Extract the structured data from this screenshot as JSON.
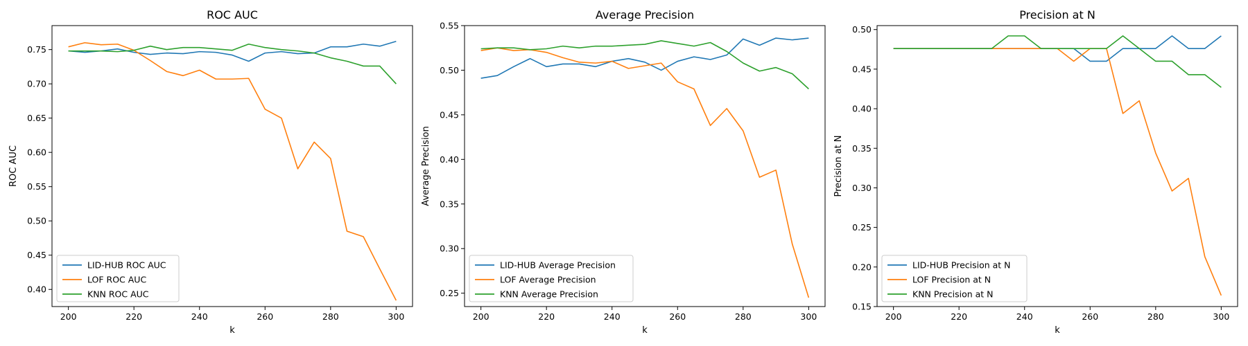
{
  "colors": {
    "lid_hub": "#1f77b4",
    "lof": "#ff7f0e",
    "knn": "#2ca02c"
  },
  "chart_data": [
    {
      "type": "line",
      "title": "ROC AUC",
      "xlabel": "k",
      "ylabel": "ROC AUC",
      "xlim": [
        195,
        305
      ],
      "ylim": [
        0.375,
        0.785
      ],
      "xticks": [
        200,
        220,
        240,
        260,
        280,
        300
      ],
      "yticks": [
        0.4,
        0.45,
        0.5,
        0.55,
        0.6,
        0.65,
        0.7,
        0.75
      ],
      "legend_position": "lower-left",
      "x": [
        200,
        205,
        210,
        215,
        220,
        225,
        230,
        235,
        240,
        245,
        250,
        255,
        260,
        265,
        270,
        275,
        280,
        285,
        290,
        295,
        300
      ],
      "series": [
        {
          "name": "LID-HUB ROC AUC",
          "color": "#1f77b4",
          "values": [
            0.748,
            0.746,
            0.748,
            0.751,
            0.746,
            0.743,
            0.745,
            0.744,
            0.747,
            0.746,
            0.742,
            0.733,
            0.745,
            0.747,
            0.744,
            0.745,
            0.754,
            0.754,
            0.758,
            0.755,
            0.762
          ]
        },
        {
          "name": "LOF ROC AUC",
          "color": "#ff7f0e",
          "values": [
            0.754,
            0.76,
            0.757,
            0.758,
            0.749,
            0.734,
            0.718,
            0.712,
            0.72,
            0.707,
            0.707,
            0.708,
            0.663,
            0.65,
            0.576,
            0.615,
            0.591,
            0.485,
            0.477,
            0.43,
            0.384
          ]
        },
        {
          "name": "KNN ROC AUC",
          "color": "#2ca02c",
          "values": [
            0.748,
            0.748,
            0.748,
            0.747,
            0.749,
            0.755,
            0.75,
            0.753,
            0.753,
            0.751,
            0.749,
            0.758,
            0.753,
            0.75,
            0.748,
            0.745,
            0.738,
            0.733,
            0.726,
            0.726,
            0.7
          ]
        }
      ]
    },
    {
      "type": "line",
      "title": "Average Precision",
      "xlabel": "k",
      "ylabel": "Average Precision",
      "xlim": [
        195,
        305
      ],
      "ylim": [
        0.235,
        0.55
      ],
      "xticks": [
        200,
        220,
        240,
        260,
        280,
        300
      ],
      "yticks": [
        0.25,
        0.3,
        0.35,
        0.4,
        0.45,
        0.5,
        0.55
      ],
      "legend_position": "lower-left",
      "x": [
        200,
        205,
        210,
        215,
        220,
        225,
        230,
        235,
        240,
        245,
        250,
        255,
        260,
        265,
        270,
        275,
        280,
        285,
        290,
        295,
        300
      ],
      "series": [
        {
          "name": "LID-HUB Average Precision",
          "color": "#1f77b4",
          "values": [
            0.491,
            0.494,
            0.504,
            0.513,
            0.504,
            0.507,
            0.507,
            0.504,
            0.51,
            0.513,
            0.509,
            0.5,
            0.51,
            0.515,
            0.512,
            0.517,
            0.535,
            0.528,
            0.536,
            0.534,
            0.536
          ]
        },
        {
          "name": "LOF Average Precision",
          "color": "#ff7f0e",
          "values": [
            0.522,
            0.525,
            0.522,
            0.523,
            0.52,
            0.514,
            0.509,
            0.508,
            0.51,
            0.502,
            0.505,
            0.508,
            0.487,
            0.479,
            0.438,
            0.457,
            0.432,
            0.38,
            0.388,
            0.305,
            0.245
          ]
        },
        {
          "name": "KNN Average Precision",
          "color": "#2ca02c",
          "values": [
            0.524,
            0.525,
            0.525,
            0.523,
            0.524,
            0.527,
            0.525,
            0.527,
            0.527,
            0.528,
            0.529,
            0.533,
            0.53,
            0.527,
            0.531,
            0.521,
            0.508,
            0.499,
            0.503,
            0.496,
            0.479
          ]
        }
      ]
    },
    {
      "type": "line",
      "title": "Precision at N",
      "xlabel": "k",
      "ylabel": "Precision at N",
      "xlim": [
        195,
        305
      ],
      "ylim": [
        0.15,
        0.505
      ],
      "xticks": [
        200,
        220,
        240,
        260,
        280,
        300
      ],
      "yticks": [
        0.15,
        0.2,
        0.25,
        0.3,
        0.35,
        0.4,
        0.45,
        0.5
      ],
      "legend_position": "lower-left",
      "x": [
        200,
        205,
        210,
        215,
        220,
        225,
        230,
        235,
        240,
        245,
        250,
        255,
        260,
        265,
        270,
        275,
        280,
        285,
        290,
        295,
        300
      ],
      "series": [
        {
          "name": "LID-HUB Precision at N",
          "color": "#1f77b4",
          "values": [
            0.476,
            0.476,
            0.476,
            0.476,
            0.476,
            0.476,
            0.476,
            0.476,
            0.476,
            0.476,
            0.476,
            0.476,
            0.46,
            0.46,
            0.476,
            0.476,
            0.476,
            0.492,
            0.476,
            0.476,
            0.492
          ]
        },
        {
          "name": "LOF Precision at N",
          "color": "#ff7f0e",
          "values": [
            0.476,
            0.476,
            0.476,
            0.476,
            0.476,
            0.476,
            0.476,
            0.476,
            0.476,
            0.476,
            0.476,
            0.46,
            0.476,
            0.476,
            0.394,
            0.41,
            0.344,
            0.296,
            0.312,
            0.213,
            0.164
          ]
        },
        {
          "name": "KNN Precision at N",
          "color": "#2ca02c",
          "values": [
            0.476,
            0.476,
            0.476,
            0.476,
            0.476,
            0.476,
            0.476,
            0.492,
            0.492,
            0.476,
            0.476,
            0.476,
            0.476,
            0.476,
            0.492,
            0.476,
            0.46,
            0.46,
            0.443,
            0.443,
            0.427
          ]
        }
      ]
    }
  ]
}
